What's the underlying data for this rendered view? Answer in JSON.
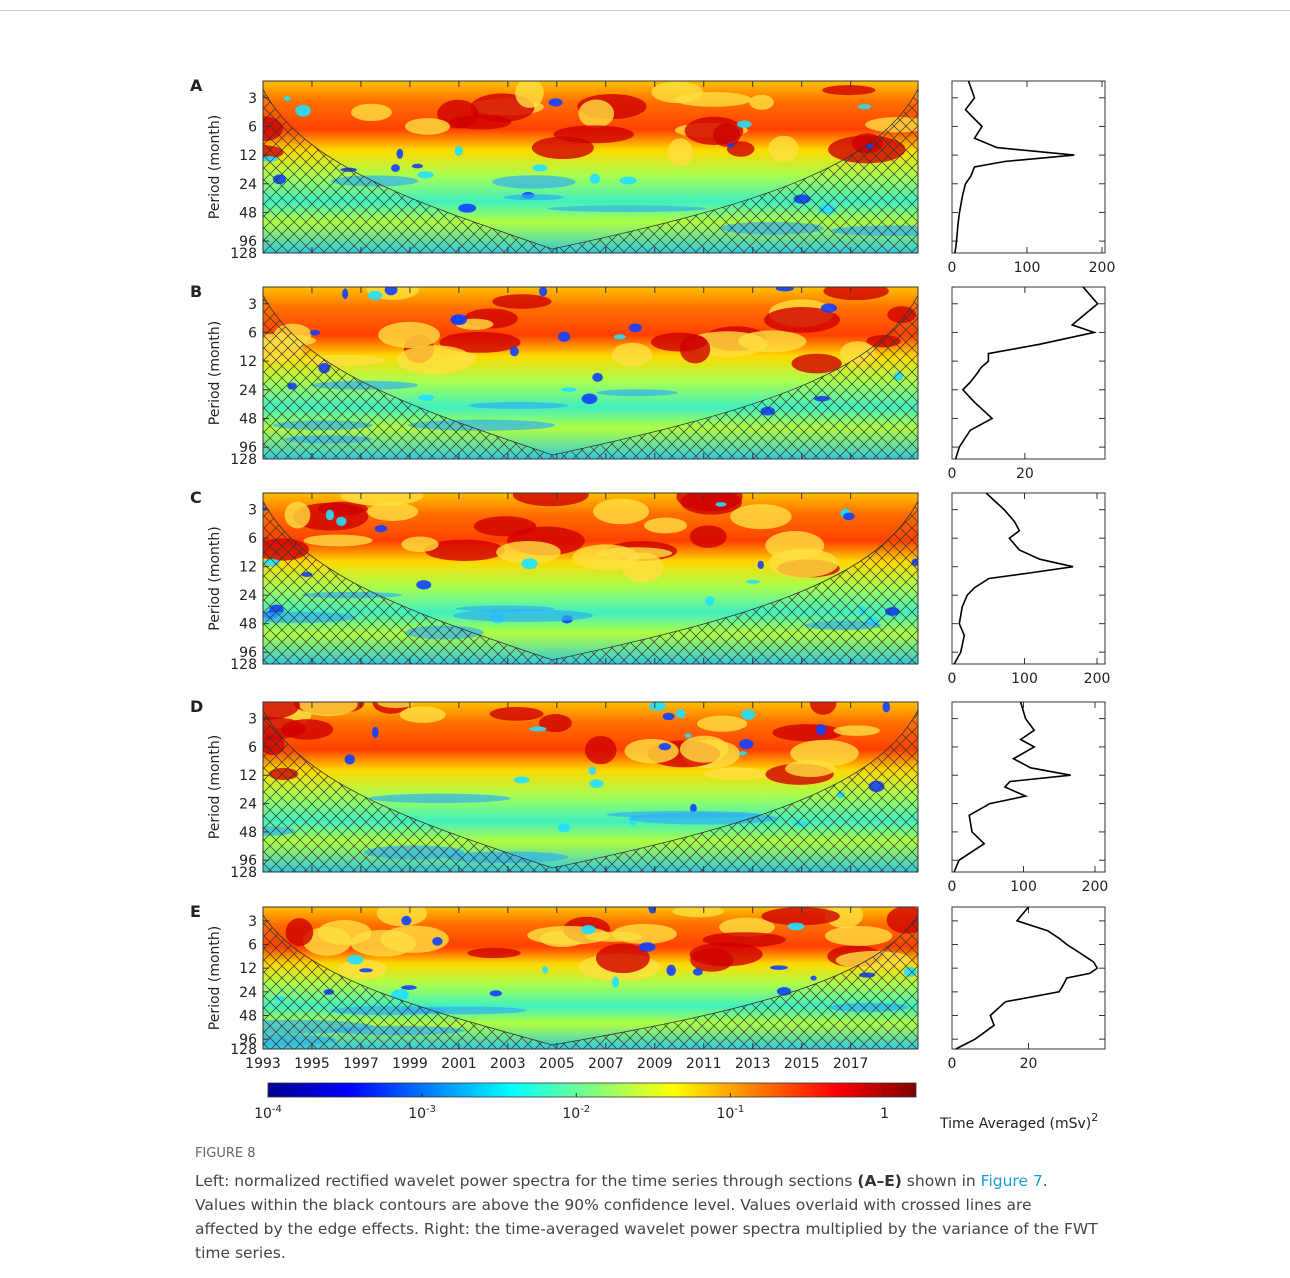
{
  "figure": {
    "panel_labels": [
      "A",
      "B",
      "C",
      "D",
      "E"
    ],
    "y_label": "Period (month)",
    "ylim": [
      2,
      128
    ],
    "yticks": [
      3,
      6,
      12,
      24,
      48,
      96,
      128
    ],
    "xlim": [
      1993,
      2019.75
    ],
    "xticks": [
      1993,
      1995,
      1997,
      1999,
      2001,
      2003,
      2005,
      2007,
      2009,
      2011,
      2013,
      2015,
      2017
    ],
    "colorbar_lim": [
      0.0001,
      1.6
    ],
    "colorbar_ticks": [
      {
        "value": 0.0001,
        "label": "10",
        "sup": "-4"
      },
      {
        "value": 0.001,
        "label": "10",
        "sup": "-3"
      },
      {
        "value": 0.01,
        "label": "10",
        "sup": "-2"
      },
      {
        "value": 0.1,
        "label": "10",
        "sup": "-1"
      },
      {
        "value": 1,
        "label": "1"
      }
    ],
    "x_label": "Time Averaged (mSv)",
    "x_label_sup": "2"
  },
  "chart_data": [
    {
      "type": "line",
      "color": "#000000",
      "log_y": true,
      "ylim": [
        2,
        128
      ],
      "xlim": [
        0,
        204
      ],
      "xticks": [
        0,
        100,
        200
      ],
      "y": [
        2,
        3,
        4,
        5,
        6,
        8,
        10,
        12,
        14,
        16,
        20,
        24,
        32,
        48,
        64,
        96,
        128
      ],
      "x": [
        22,
        30,
        18,
        30,
        40,
        30,
        60,
        163,
        70,
        30,
        25,
        18,
        14,
        10,
        8,
        6,
        4
      ]
    },
    {
      "type": "line",
      "color": "#000000",
      "log_y": true,
      "ylim": [
        2,
        128
      ],
      "xlim": [
        0,
        42
      ],
      "xticks": [
        0,
        20
      ],
      "y": [
        2,
        3,
        4,
        5,
        6,
        8,
        10,
        12,
        14,
        16,
        20,
        24,
        32,
        48,
        64,
        96,
        128
      ],
      "x": [
        36,
        40,
        36,
        33,
        39,
        24,
        10,
        10,
        8,
        7,
        5,
        3,
        6,
        11,
        5,
        2,
        1
      ]
    },
    {
      "type": "line",
      "color": "#000000",
      "log_y": true,
      "ylim": [
        2,
        128
      ],
      "xlim": [
        0,
        211
      ],
      "xticks": [
        0,
        100,
        200
      ],
      "y": [
        2,
        3,
        4,
        5,
        6,
        8,
        10,
        12,
        14,
        16,
        20,
        24,
        32,
        48,
        64,
        96,
        128
      ],
      "x": [
        47,
        72,
        86,
        93,
        79,
        93,
        121,
        167,
        107,
        51,
        31,
        21,
        14,
        10,
        17,
        12,
        3
      ]
    },
    {
      "type": "line",
      "color": "#000000",
      "log_y": true,
      "ylim": [
        2,
        128
      ],
      "xlim": [
        0,
        214
      ],
      "xticks": [
        0,
        100,
        200
      ],
      "y": [
        2,
        3,
        4,
        5,
        6,
        8,
        10,
        12,
        14,
        16,
        20,
        24,
        32,
        48,
        64,
        96,
        128
      ],
      "x": [
        96,
        103,
        115,
        96,
        115,
        86,
        110,
        166,
        81,
        74,
        103,
        53,
        24,
        28,
        45,
        10,
        3
      ]
    },
    {
      "type": "line",
      "color": "#000000",
      "log_y": true,
      "ylim": [
        2,
        128
      ],
      "xlim": [
        0,
        40
      ],
      "xticks": [
        0,
        20
      ],
      "y": [
        2,
        3,
        4,
        5,
        6,
        8,
        10,
        12,
        14,
        16,
        20,
        24,
        32,
        48,
        64,
        96,
        128
      ],
      "x": [
        20,
        17,
        25,
        28,
        30,
        34,
        37,
        38,
        36,
        30,
        29,
        28,
        14,
        10,
        11,
        6,
        1
      ]
    }
  ],
  "caption": {
    "label": "FIGURE 8",
    "parts": [
      "Left: normalized rectified wavelet power spectra for the time series through sections ",
      "(A–E)",
      " shown in ",
      "Figure 7",
      ". Values within the black contours are above the 90% confidence level. Values overlaid with crossed lines are affected by the edge effects. Right: the time-averaged wavelet power spectra multiplied by the variance of the FWT time series."
    ]
  }
}
